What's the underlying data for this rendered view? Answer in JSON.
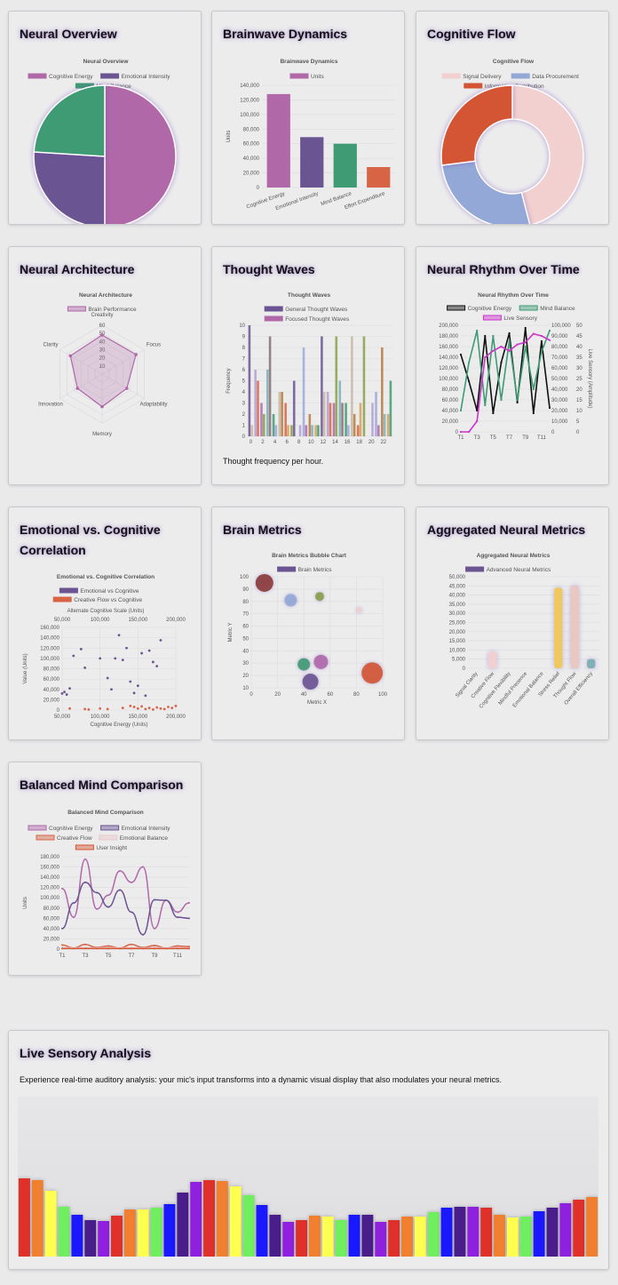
{
  "cards": {
    "neural_overview": {
      "title": "Neural Overview"
    },
    "brainwave_dynamics": {
      "title": "Brainwave Dynamics"
    },
    "cognitive_flow": {
      "title": "Cognitive Flow"
    },
    "neural_architecture": {
      "title": "Neural Architecture"
    },
    "thought_waves": {
      "title": "Thought Waves",
      "note": "Thought frequency per hour."
    },
    "neural_rhythm": {
      "title": "Neural Rhythm Over Time"
    },
    "emotional_cognitive": {
      "title": "Emotional vs. Cognitive Correlation"
    },
    "brain_metrics": {
      "title": "Brain Metrics"
    },
    "aggregated": {
      "title": "Aggregated Neural Metrics"
    },
    "balanced": {
      "title": "Balanced Mind Comparison"
    },
    "live": {
      "title": "Live Sensory Analysis",
      "description": "Experience real-time auditory analysis: your mic's input transforms into a dynamic visual display that also modulates your neural metrics."
    }
  },
  "chart_data": [
    {
      "id": "neural_overview",
      "type": "pie",
      "title": "Neural Overview",
      "labels": [
        "Cognitive Energy",
        "Emotional Intensity",
        "Mind Balance"
      ],
      "values": [
        50,
        26,
        24
      ],
      "colors": [
        "#b068a8",
        "#6b5492",
        "#3f9b74"
      ],
      "legend": "top"
    },
    {
      "id": "brainwave_dynamics",
      "type": "bar",
      "title": "Brainwave Dynamics",
      "categories": [
        "Cognitive Energy",
        "Emotional Intensity",
        "Mind Balance",
        "Effort Expenditure"
      ],
      "series": [
        {
          "name": "Units",
          "values": [
            128000,
            69000,
            60000,
            28000
          ]
        }
      ],
      "bar_colors": [
        "#b068a8",
        "#6b5492",
        "#3f9b74",
        "#d86446"
      ],
      "ylabel": "Units",
      "ylim": [
        0,
        140000
      ],
      "yticks": [
        0,
        20000,
        40000,
        60000,
        80000,
        100000,
        120000,
        140000
      ],
      "ytick_labels": [
        "0",
        "20,000",
        "40,000",
        "60,000",
        "80,000",
        "100,000",
        "120,000",
        "140,000"
      ],
      "grid": true,
      "legend": "top"
    },
    {
      "id": "cognitive_flow",
      "type": "pie",
      "title": "Cognitive Flow",
      "doughnut": true,
      "labels": [
        "Signal Delivery",
        "Data Procurement",
        "Information Distribution"
      ],
      "values": [
        46,
        27,
        27
      ],
      "colors": [
        "#f2d0d0",
        "#93a8d6",
        "#d45533"
      ],
      "legend": "top"
    },
    {
      "id": "neural_architecture",
      "type": "radar",
      "title": "Neural Architecture",
      "labels": [
        "Creativity",
        "Focus",
        "Adaptability",
        "Memory",
        "Innovation",
        "Clarity"
      ],
      "series": [
        {
          "name": "Brain Performance",
          "values": [
            48,
            48,
            35,
            40,
            35,
            45
          ]
        }
      ],
      "rticks": [
        10,
        20,
        30,
        40,
        50,
        60
      ],
      "rmax": 60,
      "color": "#b068a8",
      "legend": "top"
    },
    {
      "id": "thought_waves",
      "type": "bar",
      "title": "Thought Waves",
      "categories": [
        "0",
        "1",
        "2",
        "3",
        "4",
        "5",
        "6",
        "7",
        "8",
        "9",
        "10",
        "11",
        "12",
        "13",
        "14",
        "15",
        "16",
        "17",
        "18",
        "19",
        "20",
        "21",
        "22",
        "23"
      ],
      "series": [
        {
          "name": "General Thought Waves",
          "values": [
            10,
            6,
            3,
            6,
            2,
            4,
            3,
            1,
            0,
            8,
            2,
            1,
            9,
            4,
            3,
            5,
            3,
            9,
            1,
            9,
            0,
            4,
            8,
            2
          ]
        },
        {
          "name": "Focused Thought Waves",
          "values": [
            1,
            5,
            2,
            9,
            1,
            4,
            1,
            5,
            1,
            1,
            1,
            1,
            4,
            3,
            9,
            3,
            1,
            2,
            3,
            0,
            3,
            1,
            2,
            5
          ]
        }
      ],
      "ylabel": "Frequency",
      "ylim": [
        0,
        10
      ],
      "yticks": [
        0,
        1,
        2,
        3,
        4,
        5,
        6,
        7,
        8,
        9,
        10
      ],
      "xtick_labels": [
        "0",
        "2",
        "4",
        "6",
        "8",
        "10",
        "12",
        "14",
        "16",
        "18",
        "20",
        "22"
      ],
      "palette": [
        "#6b5492",
        "#b3a0d4",
        "#b068a8",
        "#7fb0b5",
        "#3f9b74",
        "#c9b6a0",
        "#d86446",
        "#88a04a",
        "#8a6f6f",
        "#9fa8d8",
        "#b57b3f",
        "#d8a05a"
      ],
      "grid": true,
      "legend": "top"
    },
    {
      "id": "neural_rhythm",
      "type": "line",
      "title": "Neural Rhythm Over Time",
      "x": [
        "T1",
        "T2",
        "T3",
        "T4",
        "T5",
        "T6",
        "T7",
        "T8",
        "T9",
        "T10",
        "T11",
        "T12"
      ],
      "xtick_labels": [
        "T1",
        "T3",
        "T5",
        "T7",
        "T9",
        "T11"
      ],
      "series": [
        {
          "name": "Cognitive Energy",
          "axis": "y",
          "color": "#111111",
          "values": [
            145000,
            95000,
            40000,
            180000,
            35000,
            130000,
            185000,
            55000,
            195000,
            35000,
            170000,
            45000
          ]
        },
        {
          "name": "Mind Balance",
          "axis": "y1",
          "color": "#3f9b74",
          "values": [
            20000,
            65000,
            95000,
            25000,
            90000,
            30000,
            85000,
            30000,
            80000,
            40000,
            75000,
            95000
          ]
        },
        {
          "name": "Live Sensory",
          "axis": "y2",
          "color": "#cc33cc",
          "values": [
            0,
            0,
            5,
            35,
            38,
            40,
            38,
            41,
            42,
            46,
            45,
            43
          ]
        }
      ],
      "y": {
        "ylim": [
          0,
          200000
        ],
        "ticks": [
          "0",
          "20,000",
          "40,000",
          "60,000",
          "80,000",
          "100,000",
          "120,000",
          "140,000",
          "160,000",
          "180,000",
          "200,000"
        ],
        "label": "Cognitive Energy"
      },
      "y1": {
        "ylim": [
          0,
          100000
        ],
        "ticks": [
          "0",
          "10,000",
          "20,000",
          "30,000",
          "40,000",
          "50,000",
          "60,000",
          "70,000",
          "80,000",
          "90,000",
          "100,000"
        ],
        "label": "Mind Balance"
      },
      "y2": {
        "ylim": [
          0,
          50
        ],
        "ticks": [
          "0",
          "5",
          "10",
          "15",
          "20",
          "25",
          "30",
          "35",
          "40",
          "45",
          "50"
        ],
        "label": "Live Sensory (Amplitude)"
      },
      "grid": true,
      "legend": "top"
    },
    {
      "id": "emotional_cognitive",
      "type": "scatter",
      "title": "Emotional vs. Cognitive Correlation",
      "series": [
        {
          "name": "Emotional vs Cognitive",
          "color": "#6b5492",
          "points": [
            [
              50000,
              32000
            ],
            [
              53000,
              35000
            ],
            [
              56000,
              30000
            ],
            [
              60000,
              42000
            ],
            [
              65000,
              105000
            ],
            [
              75000,
              118000
            ],
            [
              80000,
              82000
            ],
            [
              100000,
              100000
            ],
            [
              110000,
              62000
            ],
            [
              115000,
              40000
            ],
            [
              120000,
              100000
            ],
            [
              125000,
              145000
            ],
            [
              130000,
              97000
            ],
            [
              135000,
              120000
            ],
            [
              140000,
              55000
            ],
            [
              145000,
              33000
            ],
            [
              150000,
              47000
            ],
            [
              155000,
              110000
            ],
            [
              160000,
              28000
            ],
            [
              165000,
              115000
            ],
            [
              170000,
              93000
            ],
            [
              175000,
              85000
            ],
            [
              180000,
              135000
            ]
          ]
        },
        {
          "name": "Creative Flow vs Cognitive",
          "color": "#d86446",
          "points": [
            [
              60000,
              3000
            ],
            [
              80000,
              2000
            ],
            [
              85000,
              1000
            ],
            [
              100000,
              3000
            ],
            [
              110000,
              2000
            ],
            [
              130000,
              4000
            ],
            [
              140000,
              8000
            ],
            [
              145000,
              6000
            ],
            [
              150000,
              3000
            ],
            [
              155000,
              7000
            ],
            [
              160000,
              2000
            ],
            [
              165000,
              4000
            ],
            [
              170000,
              1000
            ],
            [
              175000,
              5000
            ],
            [
              180000,
              3000
            ],
            [
              185000,
              2000
            ],
            [
              190000,
              6000
            ],
            [
              195000,
              4000
            ],
            [
              200000,
              8000
            ]
          ]
        }
      ],
      "xlabel": "Cognitive Energy (Units)",
      "ylabel": "Value (Units)",
      "xlim": [
        50000,
        200000
      ],
      "ylim": [
        0,
        160000
      ],
      "xtick_labels": [
        "50,000",
        "100,000",
        "150,000",
        "200,000"
      ],
      "ytick_labels": [
        "0",
        "20,000",
        "40,000",
        "60,000",
        "80,000",
        "100,000",
        "120,000",
        "140,000",
        "160,000"
      ],
      "x2label": "Alternate Cognitive Scale (Units)",
      "x2tick_labels": [
        "50,000",
        "100,000",
        "150,000",
        "200,000"
      ],
      "grid": true,
      "legend": "top"
    },
    {
      "id": "brain_metrics",
      "type": "scatter",
      "bubble": true,
      "title": "Brain Metrics Bubble Chart",
      "series": [
        {
          "name": "Brain Metrics",
          "color": "#6b5492",
          "points": [
            {
              "x": 10,
              "y": 95,
              "r": 10,
              "color": "#8b3a3a"
            },
            {
              "x": 30,
              "y": 81,
              "r": 7,
              "color": "#93a8d6"
            },
            {
              "x": 52,
              "y": 84,
              "r": 5,
              "color": "#88a04a"
            },
            {
              "x": 82,
              "y": 73,
              "r": 3,
              "color": "#f2d0d0"
            },
            {
              "x": 40,
              "y": 29,
              "r": 7,
              "color": "#3f9b74"
            },
            {
              "x": 53,
              "y": 31,
              "r": 8,
              "color": "#b068a8"
            },
            {
              "x": 45,
              "y": 15,
              "r": 9,
              "color": "#6b5492"
            },
            {
              "x": 92,
              "y": 22,
              "r": 12,
              "color": "#d45533"
            }
          ]
        }
      ],
      "xlabel": "Metric X",
      "ylabel": "Metric Y",
      "xlim": [
        0,
        100
      ],
      "ylim": [
        10,
        100
      ],
      "xtick_labels": [
        "0",
        "20",
        "40",
        "60",
        "80",
        "100"
      ],
      "ytick_labels": [
        "10",
        "20",
        "30",
        "40",
        "50",
        "60",
        "70",
        "80",
        "90",
        "100"
      ],
      "grid": true,
      "legend": "top"
    },
    {
      "id": "aggregated",
      "type": "bar",
      "title": "Aggregated Neural Metrics",
      "categories": [
        "Signal Clarity",
        "Creative Flow",
        "Cognitive Flexibility",
        "Mindful Presence",
        "Emotional Balance",
        "Stress Relief",
        "Thought Flow",
        "Overall Efficiency"
      ],
      "series": [
        {
          "name": "Advanced Neural Metrics",
          "values": [
            0,
            9000,
            0,
            0,
            0,
            44000,
            45000,
            5000
          ]
        }
      ],
      "bar_colors": [
        "#b068a8",
        "#f2d0d0",
        "#6b5492",
        "#3f9b74",
        "#d86446",
        "#f0c860",
        "#e8c8c0",
        "#7fb0b5"
      ],
      "ylim": [
        0,
        50000
      ],
      "ytick_labels": [
        "0",
        "5,000",
        "10,000",
        "15,000",
        "20,000",
        "25,000",
        "30,000",
        "35,000",
        "40,000",
        "45,000",
        "50,000"
      ],
      "grid": true,
      "legend": "top"
    },
    {
      "id": "balanced",
      "type": "line",
      "title": "Balanced Mind Comparison",
      "x": [
        "T1",
        "T2",
        "T3",
        "T4",
        "T5",
        "T6",
        "T7",
        "T8",
        "T9",
        "T10",
        "T11",
        "T12"
      ],
      "xtick_labels": [
        "T1",
        "T3",
        "T5",
        "T7",
        "T9",
        "T11"
      ],
      "series": [
        {
          "name": "Cognitive Energy",
          "color": "#b068a8",
          "values": [
            118000,
            62000,
            175000,
            78000,
            105000,
            152000,
            130000,
            160000,
            40000,
            95000,
            72000,
            90000
          ]
        },
        {
          "name": "Emotional Intensity",
          "color": "#6b5492",
          "values": [
            40000,
            90000,
            130000,
            110000,
            82000,
            115000,
            72000,
            28000,
            96000,
            95000,
            62000,
            60000
          ]
        },
        {
          "name": "Creative Flow",
          "color": "#d86446",
          "values": [
            8000,
            2000,
            9000,
            3000,
            6000,
            2000,
            9000,
            3000,
            7000,
            2000,
            6000,
            5000
          ]
        },
        {
          "name": "Emotional Balance",
          "color": "#e8c8c8",
          "values": [
            3000,
            2000,
            3000,
            2000,
            3000,
            2000,
            3000,
            2000,
            3000,
            2000,
            3000,
            2000
          ]
        },
        {
          "name": "User Insight",
          "color": "#d45533",
          "values": [
            1000,
            1000,
            1000,
            1000,
            1000,
            1000,
            1000,
            1000,
            1000,
            1000,
            1000,
            1000
          ]
        }
      ],
      "ylabel": "Units",
      "ylim": [
        0,
        180000
      ],
      "ytick_labels": [
        "0",
        "20,000",
        "40,000",
        "60,000",
        "80,000",
        "100,000",
        "120,000",
        "140,000",
        "160,000",
        "180,000"
      ],
      "grid": true,
      "legend": "top"
    },
    {
      "id": "live_sensory",
      "type": "bar",
      "title": "",
      "values": [
        0.88,
        0.86,
        0.74,
        0.56,
        0.47,
        0.41,
        0.4,
        0.46,
        0.53,
        0.53,
        0.55,
        0.59,
        0.72,
        0.84,
        0.86,
        0.85,
        0.79,
        0.69,
        0.58,
        0.47,
        0.39,
        0.41,
        0.46,
        0.45,
        0.41,
        0.47,
        0.47,
        0.39,
        0.41,
        0.45,
        0.45,
        0.5,
        0.55,
        0.56,
        0.56,
        0.55,
        0.47,
        0.44,
        0.45,
        0.51,
        0.55,
        0.6,
        0.64,
        0.67
      ],
      "colors": [
        "#e0302a",
        "#f08030",
        "#ffff50",
        "#70ee60",
        "#1a18ff",
        "#4a1e8a",
        "#9020e0",
        "#e0302a",
        "#f08030",
        "#ffff50",
        "#70ee60",
        "#1a18ff",
        "#4a1e8a",
        "#9020e0",
        "#e0302a",
        "#f08030",
        "#ffff50",
        "#70ee60",
        "#1a18ff",
        "#4a1e8a",
        "#9020e0",
        "#e0302a",
        "#f08030",
        "#ffff50",
        "#70ee60",
        "#1a18ff",
        "#4a1e8a",
        "#9020e0",
        "#e0302a",
        "#f08030",
        "#ffff50",
        "#70ee60",
        "#1a18ff",
        "#4a1e8a",
        "#9020e0",
        "#e0302a",
        "#f08030",
        "#ffff50",
        "#70ee60",
        "#1a18ff",
        "#4a1e8a",
        "#9020e0",
        "#e0302a",
        "#f08030"
      ]
    }
  ]
}
